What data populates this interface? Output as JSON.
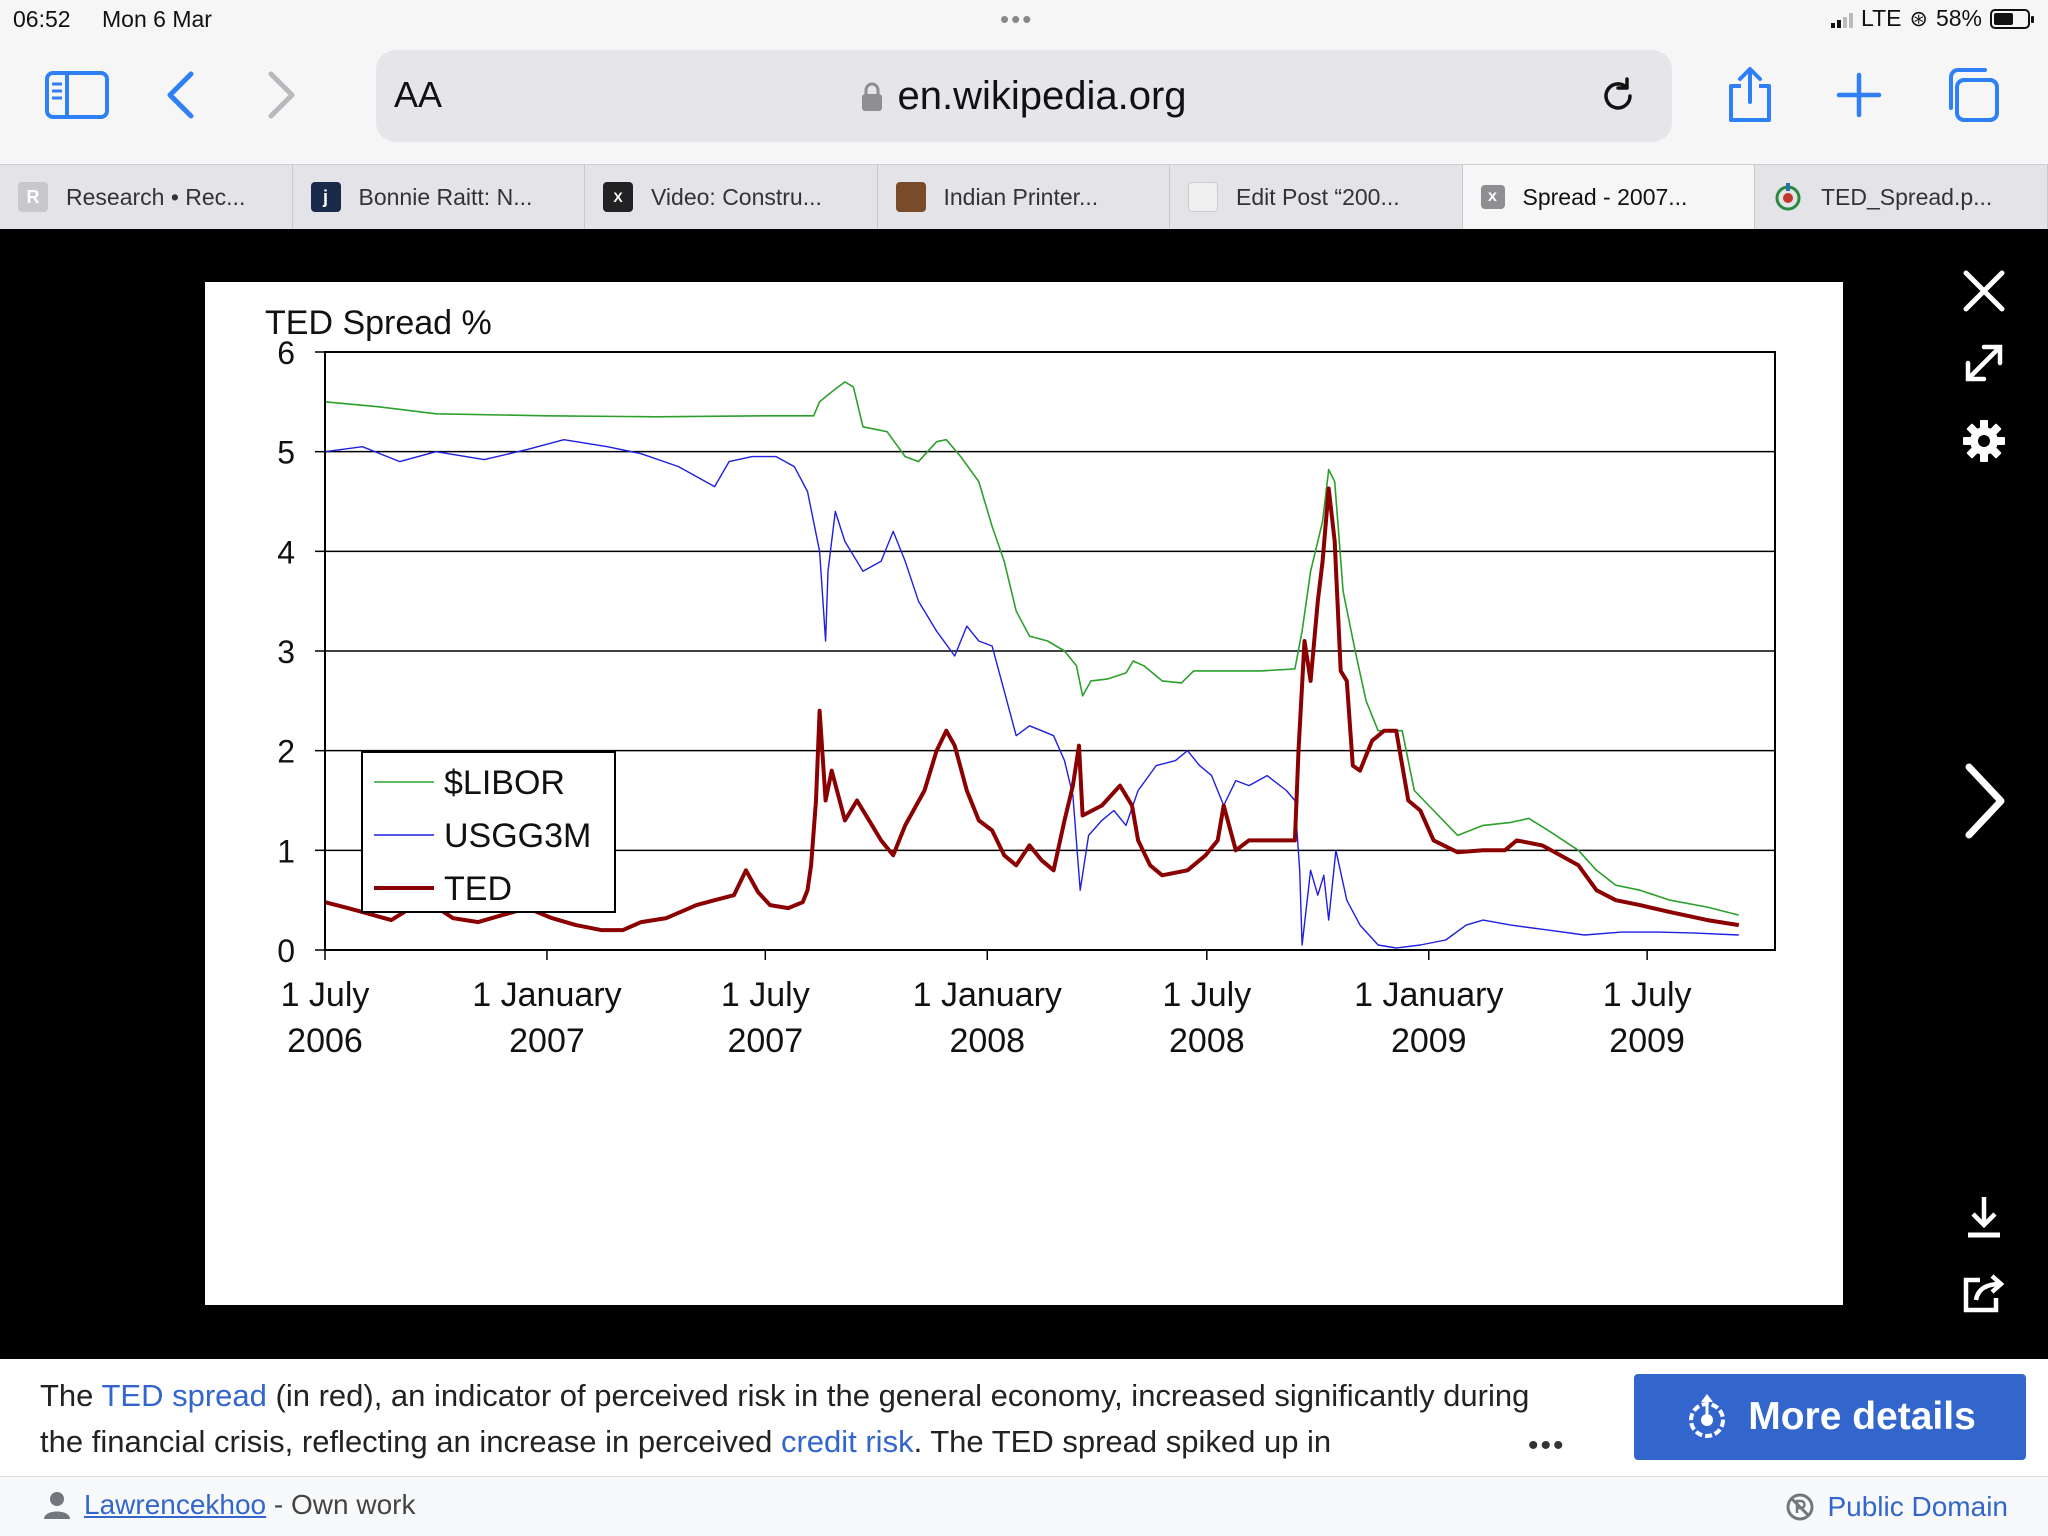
{
  "status": {
    "time": "06:52",
    "date": "Mon 6 Mar",
    "network": "LTE",
    "battery": "58%"
  },
  "browser": {
    "aa_label": "AA",
    "url": "en.wikipedia.org",
    "tabs": [
      {
        "label": "Research • Rec...",
        "icon": "R"
      },
      {
        "label": "Bonnie Raitt: N...",
        "icon": "j"
      },
      {
        "label": "Video: Constru...",
        "icon": "X"
      },
      {
        "label": "Indian Printer...",
        "icon": ""
      },
      {
        "label": "Edit Post “200...",
        "icon": ""
      },
      {
        "label": "Spread - 2007...",
        "icon": "x"
      },
      {
        "label": "TED_Spread.p...",
        "icon": ""
      }
    ]
  },
  "caption": {
    "pre1": "The ",
    "link1": "TED spread",
    "mid1": " (in red), an indicator of perceived risk in the general economy, increased significantly during the financial crisis, reflecting an increase in perceived ",
    "link2": "credit risk",
    "post": ". The TED spread spiked up in",
    "more_dots": "•••",
    "button": "More details"
  },
  "footer": {
    "author": "Lawrencekhoo",
    "author_suffix": " - Own work",
    "license": "Public Domain"
  },
  "colors": {
    "libor": "#2ca02c",
    "usgg": "#1f1fe0",
    "ted": "#8b0000",
    "link": "#3366cc"
  },
  "chart_data": {
    "type": "line",
    "title": "TED Spread %",
    "ylim": [
      0,
      6
    ],
    "yticks": [
      0,
      1,
      2,
      3,
      4,
      5,
      6
    ],
    "xlim": [
      "2006-07-01",
      "2009-10-15"
    ],
    "xticks": [
      {
        "date": "2006-07-01",
        "l1": "1 July",
        "l2": "2006"
      },
      {
        "date": "2007-01-01",
        "l1": "1 January",
        "l2": "2007"
      },
      {
        "date": "2007-07-01",
        "l1": "1 July",
        "l2": "2007"
      },
      {
        "date": "2008-01-01",
        "l1": "1 January",
        "l2": "2008"
      },
      {
        "date": "2008-07-01",
        "l1": "1 July",
        "l2": "2008"
      },
      {
        "date": "2009-01-01",
        "l1": "1 January",
        "l2": "2009"
      },
      {
        "date": "2009-07-01",
        "l1": "1 July",
        "l2": "2009"
      }
    ],
    "grid": true,
    "legend_position": "middle-left",
    "series": [
      {
        "name": "$LIBOR",
        "color": "#2ca02c",
        "width": 1.6,
        "points": [
          [
            "2006-07-01",
            5.5
          ],
          [
            "2006-08-15",
            5.45
          ],
          [
            "2006-10-01",
            5.38
          ],
          [
            "2007-01-01",
            5.36
          ],
          [
            "2007-04-01",
            5.35
          ],
          [
            "2007-07-01",
            5.36
          ],
          [
            "2007-08-10",
            5.36
          ],
          [
            "2007-08-15",
            5.5
          ],
          [
            "2007-08-25",
            5.6
          ],
          [
            "2007-09-05",
            5.7
          ],
          [
            "2007-09-12",
            5.65
          ],
          [
            "2007-09-20",
            5.25
          ],
          [
            "2007-10-10",
            5.2
          ],
          [
            "2007-10-25",
            4.95
          ],
          [
            "2007-11-05",
            4.9
          ],
          [
            "2007-11-20",
            5.1
          ],
          [
            "2007-11-28",
            5.12
          ],
          [
            "2007-12-10",
            4.95
          ],
          [
            "2007-12-25",
            4.7
          ],
          [
            "2008-01-05",
            4.25
          ],
          [
            "2008-01-15",
            3.9
          ],
          [
            "2008-01-25",
            3.4
          ],
          [
            "2008-02-05",
            3.15
          ],
          [
            "2008-02-20",
            3.1
          ],
          [
            "2008-03-05",
            3.0
          ],
          [
            "2008-03-15",
            2.85
          ],
          [
            "2008-03-20",
            2.55
          ],
          [
            "2008-03-27",
            2.7
          ],
          [
            "2008-04-10",
            2.72
          ],
          [
            "2008-04-25",
            2.78
          ],
          [
            "2008-05-01",
            2.9
          ],
          [
            "2008-05-10",
            2.85
          ],
          [
            "2008-05-25",
            2.7
          ],
          [
            "2008-06-10",
            2.68
          ],
          [
            "2008-06-20",
            2.8
          ],
          [
            "2008-07-01",
            2.8
          ],
          [
            "2008-08-15",
            2.8
          ],
          [
            "2008-09-12",
            2.82
          ],
          [
            "2008-09-18",
            3.2
          ],
          [
            "2008-09-25",
            3.8
          ],
          [
            "2008-10-05",
            4.3
          ],
          [
            "2008-10-10",
            4.82
          ],
          [
            "2008-10-15",
            4.7
          ],
          [
            "2008-10-22",
            3.6
          ],
          [
            "2008-11-01",
            3.0
          ],
          [
            "2008-11-10",
            2.5
          ],
          [
            "2008-11-20",
            2.2
          ],
          [
            "2008-12-10",
            2.2
          ],
          [
            "2008-12-20",
            1.6
          ],
          [
            "2009-01-05",
            1.4
          ],
          [
            "2009-01-25",
            1.15
          ],
          [
            "2009-02-15",
            1.25
          ],
          [
            "2009-03-10",
            1.28
          ],
          [
            "2009-03-25",
            1.32
          ],
          [
            "2009-04-10",
            1.2
          ],
          [
            "2009-05-05",
            1.0
          ],
          [
            "2009-05-20",
            0.8
          ],
          [
            "2009-06-05",
            0.65
          ],
          [
            "2009-06-25",
            0.6
          ],
          [
            "2009-07-20",
            0.5
          ],
          [
            "2009-08-20",
            0.43
          ],
          [
            "2009-09-15",
            0.35
          ]
        ]
      },
      {
        "name": "USGG3M",
        "color": "#1f1fe0",
        "width": 1.4,
        "points": [
          [
            "2006-07-01",
            5.0
          ],
          [
            "2006-08-01",
            5.05
          ],
          [
            "2006-09-01",
            4.9
          ],
          [
            "2006-10-01",
            5.0
          ],
          [
            "2006-11-10",
            4.92
          ],
          [
            "2006-12-15",
            5.02
          ],
          [
            "2007-01-15",
            5.12
          ],
          [
            "2007-02-20",
            5.05
          ],
          [
            "2007-03-20",
            4.98
          ],
          [
            "2007-04-20",
            4.85
          ],
          [
            "2007-05-20",
            4.65
          ],
          [
            "2007-06-01",
            4.9
          ],
          [
            "2007-06-20",
            4.95
          ],
          [
            "2007-07-10",
            4.95
          ],
          [
            "2007-07-25",
            4.85
          ],
          [
            "2007-08-05",
            4.6
          ],
          [
            "2007-08-15",
            4.0
          ],
          [
            "2007-08-20",
            3.1
          ],
          [
            "2007-08-22",
            3.8
          ],
          [
            "2007-08-28",
            4.4
          ],
          [
            "2007-09-05",
            4.1
          ],
          [
            "2007-09-20",
            3.8
          ],
          [
            "2007-10-05",
            3.9
          ],
          [
            "2007-10-15",
            4.2
          ],
          [
            "2007-10-25",
            3.9
          ],
          [
            "2007-11-05",
            3.5
          ],
          [
            "2007-11-20",
            3.2
          ],
          [
            "2007-12-05",
            2.95
          ],
          [
            "2007-12-15",
            3.25
          ],
          [
            "2007-12-25",
            3.1
          ],
          [
            "2008-01-05",
            3.05
          ],
          [
            "2008-01-15",
            2.6
          ],
          [
            "2008-01-25",
            2.15
          ],
          [
            "2008-02-05",
            2.25
          ],
          [
            "2008-02-15",
            2.2
          ],
          [
            "2008-02-25",
            2.15
          ],
          [
            "2008-03-05",
            1.9
          ],
          [
            "2008-03-12",
            1.55
          ],
          [
            "2008-03-18",
            0.6
          ],
          [
            "2008-03-25",
            1.15
          ],
          [
            "2008-04-05",
            1.3
          ],
          [
            "2008-04-15",
            1.4
          ],
          [
            "2008-04-25",
            1.25
          ],
          [
            "2008-05-05",
            1.6
          ],
          [
            "2008-05-20",
            1.85
          ],
          [
            "2008-06-05",
            1.9
          ],
          [
            "2008-06-15",
            2.0
          ],
          [
            "2008-06-25",
            1.85
          ],
          [
            "2008-07-05",
            1.75
          ],
          [
            "2008-07-15",
            1.45
          ],
          [
            "2008-07-25",
            1.7
          ],
          [
            "2008-08-05",
            1.65
          ],
          [
            "2008-08-20",
            1.75
          ],
          [
            "2008-09-05",
            1.6
          ],
          [
            "2008-09-12",
            1.5
          ],
          [
            "2008-09-16",
            0.8
          ],
          [
            "2008-09-18",
            0.05
          ],
          [
            "2008-09-25",
            0.8
          ],
          [
            "2008-10-01",
            0.55
          ],
          [
            "2008-10-06",
            0.75
          ],
          [
            "2008-10-10",
            0.3
          ],
          [
            "2008-10-16",
            1.0
          ],
          [
            "2008-10-25",
            0.5
          ],
          [
            "2008-11-05",
            0.25
          ],
          [
            "2008-11-20",
            0.05
          ],
          [
            "2008-12-05",
            0.02
          ],
          [
            "2008-12-25",
            0.05
          ],
          [
            "2009-01-15",
            0.1
          ],
          [
            "2009-02-01",
            0.25
          ],
          [
            "2009-02-15",
            0.3
          ],
          [
            "2009-03-10",
            0.25
          ],
          [
            "2009-04-10",
            0.2
          ],
          [
            "2009-05-10",
            0.15
          ],
          [
            "2009-06-10",
            0.18
          ],
          [
            "2009-07-10",
            0.18
          ],
          [
            "2009-08-10",
            0.17
          ],
          [
            "2009-09-15",
            0.15
          ]
        ]
      },
      {
        "name": "TED",
        "color": "#8b0000",
        "width": 4,
        "points": [
          [
            "2006-07-01",
            0.48
          ],
          [
            "2006-07-20",
            0.42
          ],
          [
            "2006-08-10",
            0.35
          ],
          [
            "2006-08-25",
            0.3
          ],
          [
            "2006-09-10",
            0.42
          ],
          [
            "2006-09-25",
            0.48
          ],
          [
            "2006-10-15",
            0.32
          ],
          [
            "2006-11-05",
            0.28
          ],
          [
            "2006-11-25",
            0.35
          ],
          [
            "2006-12-10",
            0.4
          ],
          [
            "2006-12-20",
            0.4
          ],
          [
            "2007-01-05",
            0.32
          ],
          [
            "2007-01-25",
            0.25
          ],
          [
            "2007-02-15",
            0.2
          ],
          [
            "2007-03-05",
            0.2
          ],
          [
            "2007-03-20",
            0.28
          ],
          [
            "2007-04-10",
            0.32
          ],
          [
            "2007-05-05",
            0.45
          ],
          [
            "2007-05-20",
            0.5
          ],
          [
            "2007-06-05",
            0.55
          ],
          [
            "2007-06-15",
            0.8
          ],
          [
            "2007-06-25",
            0.58
          ],
          [
            "2007-07-05",
            0.45
          ],
          [
            "2007-07-20",
            0.42
          ],
          [
            "2007-08-01",
            0.48
          ],
          [
            "2007-08-05",
            0.6
          ],
          [
            "2007-08-08",
            0.85
          ],
          [
            "2007-08-12",
            1.5
          ],
          [
            "2007-08-15",
            2.4
          ],
          [
            "2007-08-20",
            1.5
          ],
          [
            "2007-08-25",
            1.8
          ],
          [
            "2007-09-05",
            1.3
          ],
          [
            "2007-09-15",
            1.5
          ],
          [
            "2007-09-25",
            1.3
          ],
          [
            "2007-10-05",
            1.1
          ],
          [
            "2007-10-15",
            0.95
          ],
          [
            "2007-10-25",
            1.25
          ],
          [
            "2007-11-10",
            1.6
          ],
          [
            "2007-11-20",
            2.0
          ],
          [
            "2007-11-28",
            2.2
          ],
          [
            "2007-12-05",
            2.05
          ],
          [
            "2007-12-15",
            1.6
          ],
          [
            "2007-12-25",
            1.3
          ],
          [
            "2008-01-05",
            1.2
          ],
          [
            "2008-01-15",
            0.95
          ],
          [
            "2008-01-25",
            0.85
          ],
          [
            "2008-02-05",
            1.05
          ],
          [
            "2008-02-15",
            0.9
          ],
          [
            "2008-02-25",
            0.8
          ],
          [
            "2008-03-05",
            1.3
          ],
          [
            "2008-03-12",
            1.65
          ],
          [
            "2008-03-17",
            2.05
          ],
          [
            "2008-03-20",
            1.35
          ],
          [
            "2008-04-05",
            1.45
          ],
          [
            "2008-04-20",
            1.65
          ],
          [
            "2008-04-30",
            1.45
          ],
          [
            "2008-05-05",
            1.1
          ],
          [
            "2008-05-15",
            0.85
          ],
          [
            "2008-05-25",
            0.75
          ],
          [
            "2008-06-15",
            0.8
          ],
          [
            "2008-06-30",
            0.95
          ],
          [
            "2008-07-10",
            1.1
          ],
          [
            "2008-07-15",
            1.45
          ],
          [
            "2008-07-25",
            1.0
          ],
          [
            "2008-08-05",
            1.1
          ],
          [
            "2008-08-20",
            1.1
          ],
          [
            "2008-09-05",
            1.1
          ],
          [
            "2008-09-12",
            1.1
          ],
          [
            "2008-09-15",
            2.0
          ],
          [
            "2008-09-20",
            3.1
          ],
          [
            "2008-09-25",
            2.7
          ],
          [
            "2008-10-01",
            3.5
          ],
          [
            "2008-10-05",
            3.9
          ],
          [
            "2008-10-10",
            4.63
          ],
          [
            "2008-10-15",
            4.1
          ],
          [
            "2008-10-20",
            2.8
          ],
          [
            "2008-10-25",
            2.7
          ],
          [
            "2008-10-30",
            1.85
          ],
          [
            "2008-11-05",
            1.8
          ],
          [
            "2008-11-15",
            2.1
          ],
          [
            "2008-11-25",
            2.2
          ],
          [
            "2008-12-05",
            2.2
          ],
          [
            "2008-12-15",
            1.5
          ],
          [
            "2008-12-25",
            1.4
          ],
          [
            "2009-01-05",
            1.1
          ],
          [
            "2009-01-25",
            0.98
          ],
          [
            "2009-02-15",
            1.0
          ],
          [
            "2009-03-05",
            1.0
          ],
          [
            "2009-03-15",
            1.1
          ],
          [
            "2009-04-05",
            1.05
          ],
          [
            "2009-04-20",
            0.95
          ],
          [
            "2009-05-05",
            0.85
          ],
          [
            "2009-05-20",
            0.6
          ],
          [
            "2009-06-05",
            0.5
          ],
          [
            "2009-06-25",
            0.45
          ],
          [
            "2009-07-20",
            0.38
          ],
          [
            "2009-08-20",
            0.3
          ],
          [
            "2009-09-15",
            0.25
          ]
        ]
      }
    ]
  }
}
